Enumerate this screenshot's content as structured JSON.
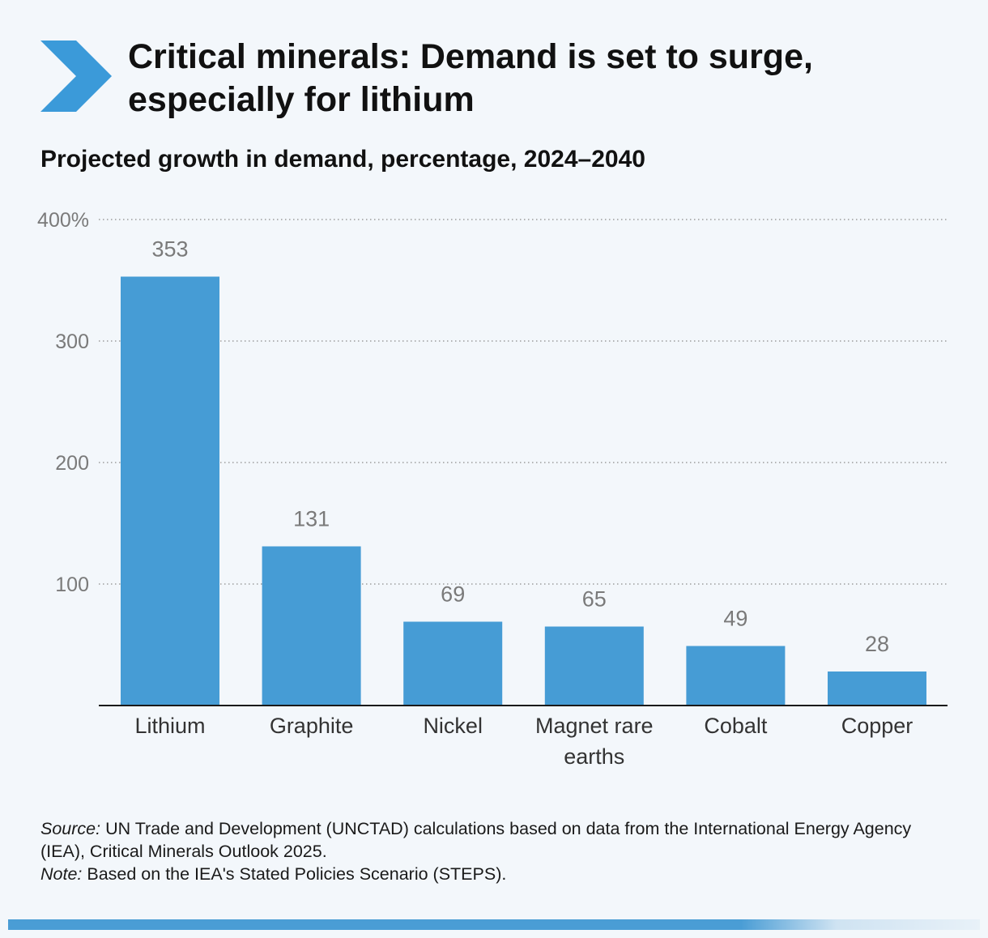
{
  "header": {
    "title_line1": "Critical minerals: Demand is set to surge,",
    "title_line2": "especially for lithium",
    "subtitle": "Projected growth in demand, percentage, 2024–2040",
    "accent_color": "#3b9ad9"
  },
  "chart_data": {
    "type": "bar",
    "categories": [
      "Lithium",
      "Graphite",
      "Nickel",
      "Magnet rare earths",
      "Cobalt",
      "Copper"
    ],
    "category_lines": [
      [
        "Lithium"
      ],
      [
        "Graphite"
      ],
      [
        "Nickel"
      ],
      [
        "Magnet rare",
        "earths"
      ],
      [
        "Cobalt"
      ],
      [
        "Copper"
      ]
    ],
    "values": [
      353,
      131,
      69,
      65,
      49,
      28
    ],
    "ylim": [
      0,
      400
    ],
    "yticks": [
      100,
      200,
      300,
      400
    ],
    "ytick_labels": [
      "100",
      "200",
      "300",
      "400%"
    ],
    "title": "Projected growth in demand, percentage, 2024–2040",
    "xlabel": "",
    "ylabel": "",
    "grid": true,
    "bar_color": "#469cd5"
  },
  "footer": {
    "source_label": "Source:",
    "source_text": " UN Trade and Development (UNCTAD) calculations based on data from the International Energy Agency (IEA), Critical Minerals Outlook 2025.",
    "note_label": "Note:",
    "note_text": " Based on the IEA's Stated Policies Scenario (STEPS)."
  }
}
